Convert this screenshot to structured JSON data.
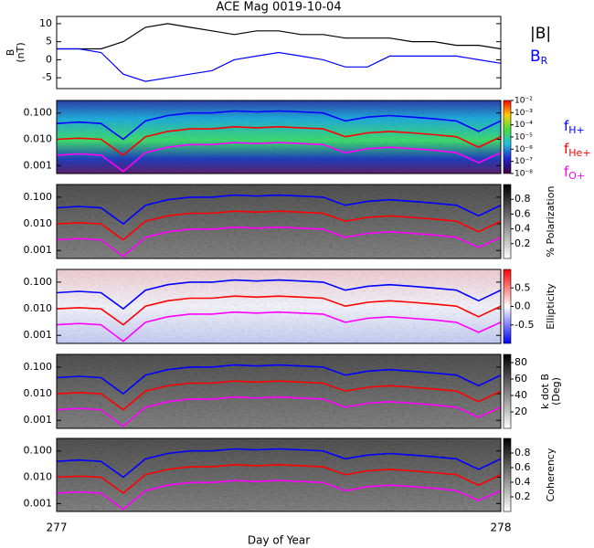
{
  "chart_data": [
    {
      "type": "line",
      "title": "ACE Mag 0019-10-04",
      "y_label": [
        "B",
        "(nT)"
      ],
      "x": [
        277.0,
        277.05,
        277.1,
        277.15,
        277.2,
        277.25,
        277.3,
        277.35,
        277.4,
        277.45,
        277.5,
        277.55,
        277.6,
        277.65,
        277.7,
        277.75,
        277.8,
        277.85,
        277.9,
        277.95,
        278.0
      ],
      "xlim": [
        277,
        278
      ],
      "ylim": [
        -8,
        12
      ],
      "yticks": [
        -5,
        0,
        5,
        10
      ],
      "series": [
        {
          "name": "|B|",
          "color": "#000000",
          "values": [
            3,
            3,
            3,
            5,
            9,
            10,
            9,
            8,
            7,
            8,
            8,
            7,
            7,
            6,
            6,
            6,
            5,
            5,
            4,
            4,
            3
          ]
        },
        {
          "name": "B",
          "name_subscript": "R",
          "color": "#0000ff",
          "values": [
            3,
            3,
            2,
            -4,
            -6,
            -5,
            -4,
            -3,
            0,
            1,
            2,
            1,
            0,
            -2,
            -2,
            1,
            1,
            1,
            1,
            0,
            -1
          ]
        }
      ]
    },
    {
      "type": "spectrogram",
      "x": [
        277.0,
        277.05,
        277.1,
        277.15,
        277.2,
        277.25,
        277.3,
        277.35,
        277.4,
        277.45,
        277.5,
        277.55,
        277.6,
        277.65,
        277.7,
        277.75,
        277.8,
        277.85,
        277.9,
        277.95,
        278.0
      ],
      "xlim": [
        277,
        278
      ],
      "ylim": [
        0.0005,
        0.3
      ],
      "log_y": true,
      "yticks": [
        {
          "value": 0.001,
          "label": "0.001"
        },
        {
          "value": 0.01,
          "label": "0.010"
        },
        {
          "value": 0.1,
          "label": "0.100"
        }
      ],
      "series": [
        {
          "name": "f",
          "name_subscript": "H+",
          "color": "#0000ff",
          "values": [
            0.04,
            0.045,
            0.04,
            0.01,
            0.05,
            0.08,
            0.1,
            0.1,
            0.12,
            0.11,
            0.12,
            0.11,
            0.1,
            0.05,
            0.07,
            0.08,
            0.07,
            0.06,
            0.05,
            0.02,
            0.05
          ]
        },
        {
          "name": "f",
          "name_subscript": "He+",
          "color": "#ff0000",
          "values": [
            0.01,
            0.011,
            0.01,
            0.0025,
            0.0125,
            0.02,
            0.025,
            0.025,
            0.03,
            0.0275,
            0.03,
            0.0275,
            0.025,
            0.0125,
            0.0175,
            0.02,
            0.0175,
            0.015,
            0.0125,
            0.005,
            0.0125
          ]
        },
        {
          "name": "f",
          "name_subscript": "O+",
          "color": "#ff00ff",
          "values": [
            0.0025,
            0.0028,
            0.0025,
            0.0006,
            0.0031,
            0.005,
            0.0063,
            0.0063,
            0.0075,
            0.0069,
            0.0075,
            0.0069,
            0.0063,
            0.0031,
            0.0044,
            0.005,
            0.0044,
            0.0038,
            0.0031,
            0.0013,
            0.0031
          ]
        }
      ],
      "colorbar": {
        "colormap": "rainbow",
        "lim": [
          1e-08,
          0.01
        ],
        "log": true,
        "ticks": [
          {
            "value": 0.01,
            "label": "10⁻²"
          },
          {
            "value": 0.001,
            "label": "10⁻³"
          },
          {
            "value": 0.0001,
            "label": "10⁻⁴"
          },
          {
            "value": 1e-05,
            "label": "10⁻⁵"
          },
          {
            "value": 1e-06,
            "label": "10⁻⁶"
          },
          {
            "value": 1e-07,
            "label": "10⁻⁷"
          },
          {
            "value": 1e-08,
            "label": "10⁻⁸"
          }
        ]
      }
    },
    {
      "type": "spectrogram",
      "x": [
        277.0,
        277.05,
        277.1,
        277.15,
        277.2,
        277.25,
        277.3,
        277.35,
        277.4,
        277.45,
        277.5,
        277.55,
        277.6,
        277.65,
        277.7,
        277.75,
        277.8,
        277.85,
        277.9,
        277.95,
        278.0
      ],
      "xlim": [
        277,
        278
      ],
      "ylim": [
        0.0005,
        0.3
      ],
      "log_y": true,
      "yticks": [
        {
          "value": 0.001,
          "label": "0.001"
        },
        {
          "value": 0.01,
          "label": "0.010"
        },
        {
          "value": 0.1,
          "label": "0.100"
        }
      ],
      "series": [
        {
          "color": "#0000ff",
          "values": [
            0.04,
            0.045,
            0.04,
            0.01,
            0.05,
            0.08,
            0.1,
            0.1,
            0.12,
            0.11,
            0.12,
            0.11,
            0.1,
            0.05,
            0.07,
            0.08,
            0.07,
            0.06,
            0.05,
            0.02,
            0.05
          ]
        },
        {
          "color": "#ff0000",
          "values": [
            0.01,
            0.011,
            0.01,
            0.0025,
            0.0125,
            0.02,
            0.025,
            0.025,
            0.03,
            0.0275,
            0.03,
            0.0275,
            0.025,
            0.0125,
            0.0175,
            0.02,
            0.0175,
            0.015,
            0.0125,
            0.005,
            0.0125
          ]
        },
        {
          "color": "#ff00ff",
          "values": [
            0.0025,
            0.0028,
            0.0025,
            0.0006,
            0.0031,
            0.005,
            0.0063,
            0.0063,
            0.0075,
            0.0069,
            0.0075,
            0.0069,
            0.0063,
            0.0031,
            0.0044,
            0.005,
            0.0044,
            0.0038,
            0.0031,
            0.0013,
            0.0031
          ]
        }
      ],
      "colorbar": {
        "colormap": "gray",
        "lim": [
          0,
          1
        ],
        "ticks": [
          0.2,
          0.4,
          0.6,
          0.8
        ],
        "label": [
          "% Polarization"
        ]
      }
    },
    {
      "type": "spectrogram",
      "x": [
        277.0,
        277.05,
        277.1,
        277.15,
        277.2,
        277.25,
        277.3,
        277.35,
        277.4,
        277.45,
        277.5,
        277.55,
        277.6,
        277.65,
        277.7,
        277.75,
        277.8,
        277.85,
        277.9,
        277.95,
        278.0
      ],
      "xlim": [
        277,
        278
      ],
      "ylim": [
        0.0005,
        0.3
      ],
      "log_y": true,
      "yticks": [
        {
          "value": 0.001,
          "label": "0.001"
        },
        {
          "value": 0.01,
          "label": "0.010"
        },
        {
          "value": 0.1,
          "label": "0.100"
        }
      ],
      "series": [
        {
          "color": "#0000ff",
          "values": [
            0.04,
            0.045,
            0.04,
            0.01,
            0.05,
            0.08,
            0.1,
            0.1,
            0.12,
            0.11,
            0.12,
            0.11,
            0.1,
            0.05,
            0.07,
            0.08,
            0.07,
            0.06,
            0.05,
            0.02,
            0.05
          ]
        },
        {
          "color": "#ff0000",
          "values": [
            0.01,
            0.011,
            0.01,
            0.0025,
            0.0125,
            0.02,
            0.025,
            0.025,
            0.03,
            0.0275,
            0.03,
            0.0275,
            0.025,
            0.0125,
            0.0175,
            0.02,
            0.0175,
            0.015,
            0.0125,
            0.005,
            0.0125
          ]
        },
        {
          "color": "#ff00ff",
          "values": [
            0.0025,
            0.0028,
            0.0025,
            0.0006,
            0.0031,
            0.005,
            0.0063,
            0.0063,
            0.0075,
            0.0069,
            0.0075,
            0.0069,
            0.0063,
            0.0031,
            0.0044,
            0.005,
            0.0044,
            0.0038,
            0.0031,
            0.0013,
            0.0031
          ]
        }
      ],
      "colorbar": {
        "colormap": "bwr",
        "lim": [
          -1,
          1
        ],
        "ticks": [
          -0.5,
          {
            "value": 0,
            "label": "0.0"
          },
          0.5
        ],
        "label": [
          "Ellipticity"
        ]
      }
    },
    {
      "type": "spectrogram",
      "x": [
        277.0,
        277.05,
        277.1,
        277.15,
        277.2,
        277.25,
        277.3,
        277.35,
        277.4,
        277.45,
        277.5,
        277.55,
        277.6,
        277.65,
        277.7,
        277.75,
        277.8,
        277.85,
        277.9,
        277.95,
        278.0
      ],
      "xlim": [
        277,
        278
      ],
      "ylim": [
        0.0005,
        0.3
      ],
      "log_y": true,
      "yticks": [
        {
          "value": 0.001,
          "label": "0.001"
        },
        {
          "value": 0.01,
          "label": "0.010"
        },
        {
          "value": 0.1,
          "label": "0.100"
        }
      ],
      "series": [
        {
          "color": "#0000ff",
          "values": [
            0.04,
            0.045,
            0.04,
            0.01,
            0.05,
            0.08,
            0.1,
            0.1,
            0.12,
            0.11,
            0.12,
            0.11,
            0.1,
            0.05,
            0.07,
            0.08,
            0.07,
            0.06,
            0.05,
            0.02,
            0.05
          ]
        },
        {
          "color": "#ff0000",
          "values": [
            0.01,
            0.011,
            0.01,
            0.0025,
            0.0125,
            0.02,
            0.025,
            0.025,
            0.03,
            0.0275,
            0.03,
            0.0275,
            0.025,
            0.0125,
            0.0175,
            0.02,
            0.0175,
            0.015,
            0.0125,
            0.005,
            0.0125
          ]
        },
        {
          "color": "#ff00ff",
          "values": [
            0.0025,
            0.0028,
            0.0025,
            0.0006,
            0.0031,
            0.005,
            0.0063,
            0.0063,
            0.0075,
            0.0069,
            0.0075,
            0.0069,
            0.0063,
            0.0031,
            0.0044,
            0.005,
            0.0044,
            0.0038,
            0.0031,
            0.0013,
            0.0031
          ]
        }
      ],
      "colorbar": {
        "colormap": "gray",
        "lim": [
          0,
          90
        ],
        "ticks": [
          20,
          40,
          60,
          80
        ],
        "label": [
          "k dot B",
          "(Deg)"
        ]
      }
    },
    {
      "type": "spectrogram",
      "x": [
        277.0,
        277.05,
        277.1,
        277.15,
        277.2,
        277.25,
        277.3,
        277.35,
        277.4,
        277.45,
        277.5,
        277.55,
        277.6,
        277.65,
        277.7,
        277.75,
        277.8,
        277.85,
        277.9,
        277.95,
        278.0
      ],
      "xlim": [
        277,
        278
      ],
      "ylim": [
        0.0005,
        0.3
      ],
      "log_y": true,
      "yticks": [
        {
          "value": 0.001,
          "label": "0.001"
        },
        {
          "value": 0.01,
          "label": "0.010"
        },
        {
          "value": 0.1,
          "label": "0.100"
        }
      ],
      "xticks": [
        277,
        278
      ],
      "x_label": "Day of Year",
      "series": [
        {
          "color": "#0000ff",
          "values": [
            0.04,
            0.045,
            0.04,
            0.01,
            0.05,
            0.08,
            0.1,
            0.1,
            0.12,
            0.11,
            0.12,
            0.11,
            0.1,
            0.05,
            0.07,
            0.08,
            0.07,
            0.06,
            0.05,
            0.02,
            0.05
          ]
        },
        {
          "color": "#ff0000",
          "values": [
            0.01,
            0.011,
            0.01,
            0.0025,
            0.0125,
            0.02,
            0.025,
            0.025,
            0.03,
            0.0275,
            0.03,
            0.0275,
            0.025,
            0.0125,
            0.0175,
            0.02,
            0.0175,
            0.015,
            0.0125,
            0.005,
            0.0125
          ]
        },
        {
          "color": "#ff00ff",
          "values": [
            0.0025,
            0.0028,
            0.0025,
            0.0006,
            0.0031,
            0.005,
            0.0063,
            0.0063,
            0.0075,
            0.0069,
            0.0075,
            0.0069,
            0.0063,
            0.0031,
            0.0044,
            0.005,
            0.0044,
            0.0038,
            0.0031,
            0.0013,
            0.0031
          ]
        }
      ],
      "colorbar": {
        "colormap": "gray",
        "lim": [
          0,
          1
        ],
        "ticks": [
          0.2,
          0.4,
          0.6,
          0.8
        ],
        "label": [
          "Coherency"
        ]
      }
    }
  ]
}
